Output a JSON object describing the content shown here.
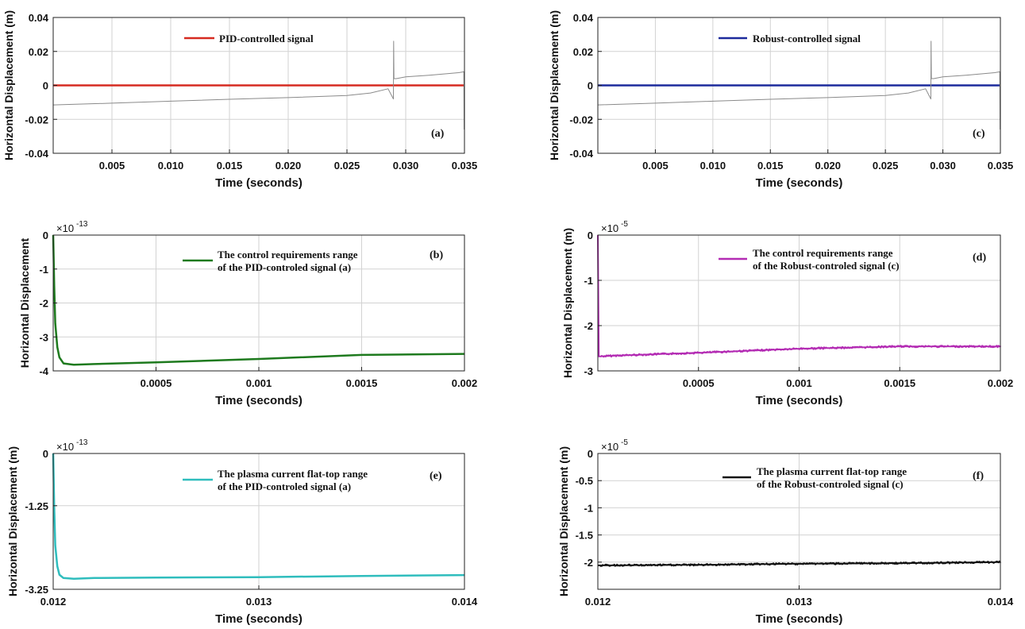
{
  "chart_data": [
    {
      "type": "line",
      "panel_label": "(a)",
      "xlabel": "Time (seconds)",
      "ylabel": "Horizontal Displacement (m)",
      "xlim": [
        0,
        0.035
      ],
      "ylim": [
        -0.04,
        0.04
      ],
      "xticks": [
        0.005,
        0.01,
        0.015,
        0.02,
        0.025,
        0.03,
        0.035
      ],
      "xtick_labels": [
        "0.005",
        "0.010",
        "0.015",
        "0.020",
        "0.025",
        "0.030",
        "0.035"
      ],
      "yticks": [
        -0.04,
        -0.02,
        0,
        0.02,
        0.04
      ],
      "ytick_labels": [
        "-0.04",
        "-0.02",
        "0",
        "0.02",
        "0.04"
      ],
      "exponent": "",
      "grid": true,
      "legend_position": "top-center",
      "series": [
        {
          "name": "PID-controlled signal",
          "color": "#d62a20",
          "x": [
            0,
            0.035
          ],
          "y": [
            0,
            0
          ],
          "width": 2.5
        },
        {
          "color": "#8a8a8a",
          "x": [
            0,
            0.005,
            0.01,
            0.015,
            0.02,
            0.025,
            0.027,
            0.0285,
            0.02895,
            0.02897,
            0.029,
            0.0292,
            0.03,
            0.032,
            0.0345,
            0.03495,
            0.03497
          ],
          "y": [
            -0.0115,
            -0.0105,
            -0.0093,
            -0.0082,
            -0.0072,
            -0.006,
            -0.0045,
            -0.002,
            -0.008,
            0.026,
            0.004,
            0.004,
            0.005,
            0.006,
            0.0075,
            0.008,
            -0.026
          ],
          "width": 1
        }
      ]
    },
    {
      "type": "line",
      "panel_label": "(c)",
      "xlabel": "Time (seconds)",
      "ylabel": "Horizontal Displacement (m)",
      "xlim": [
        0,
        0.035
      ],
      "ylim": [
        -0.04,
        0.04
      ],
      "xticks": [
        0.005,
        0.01,
        0.015,
        0.02,
        0.025,
        0.03,
        0.035
      ],
      "xtick_labels": [
        "0.005",
        "0.010",
        "0.015",
        "0.020",
        "0.025",
        "0.030",
        "0.035"
      ],
      "yticks": [
        -0.04,
        -0.02,
        0,
        0.02,
        0.04
      ],
      "ytick_labels": [
        "-0.04",
        "-0.02",
        "0",
        "0.02",
        "0.04"
      ],
      "exponent": "",
      "grid": true,
      "legend_position": "top-center",
      "series": [
        {
          "name": "Robust-controlled signal",
          "color": "#1c2a9c",
          "x": [
            0,
            0.035
          ],
          "y": [
            0,
            0
          ],
          "width": 2.5
        },
        {
          "color": "#8a8a8a",
          "x": [
            0,
            0.005,
            0.01,
            0.015,
            0.02,
            0.025,
            0.027,
            0.0285,
            0.02895,
            0.02897,
            0.029,
            0.0292,
            0.03,
            0.032,
            0.0345,
            0.03495,
            0.03497
          ],
          "y": [
            -0.0115,
            -0.0105,
            -0.0093,
            -0.0082,
            -0.0072,
            -0.006,
            -0.0045,
            -0.002,
            -0.008,
            0.026,
            0.004,
            0.004,
            0.005,
            0.006,
            0.0075,
            0.008,
            -0.026
          ],
          "width": 1
        }
      ]
    },
    {
      "type": "line",
      "panel_label": "(b)",
      "xlabel": "Time (seconds)",
      "ylabel": "Horizontal Displacement",
      "xlim": [
        0,
        0.002
      ],
      "ylim": [
        -4,
        0
      ],
      "xticks": [
        0.0005,
        0.001,
        0.0015,
        0.002
      ],
      "xtick_labels": [
        "0.0005",
        "0.001",
        "0.0015",
        "0.002"
      ],
      "yticks": [
        -4,
        -3,
        -2,
        -1,
        0
      ],
      "ytick_labels": [
        "-4",
        "-3",
        "-2",
        "-1",
        "0"
      ],
      "exponent": "-13",
      "grid": true,
      "legend_position": "top-center",
      "series": [
        {
          "name": "The control requirements range|of the PID-controled signal (a)",
          "color": "#1e7a1e",
          "x": [
            0,
            5e-06,
            1e-05,
            2e-05,
            3e-05,
            5e-05,
            0.0001,
            0.0002,
            0.0005,
            0.001,
            0.0015,
            0.002
          ],
          "y": [
            0,
            -1.5,
            -2.6,
            -3.3,
            -3.6,
            -3.78,
            -3.82,
            -3.8,
            -3.75,
            -3.65,
            -3.53,
            -3.5
          ],
          "width": 2.5
        }
      ]
    },
    {
      "type": "line",
      "panel_label": "(d)",
      "xlabel": "Time (seconds)",
      "ylabel": "Horizontal Displacement (m)",
      "xlim": [
        0,
        0.002
      ],
      "ylim": [
        -3,
        0
      ],
      "xticks": [
        0.0005,
        0.001,
        0.0015,
        0.002
      ],
      "xtick_labels": [
        "0.0005",
        "0.001",
        "0.0015",
        "0.002"
      ],
      "yticks": [
        -3,
        -2,
        -1,
        0
      ],
      "ytick_labels": [
        "-3",
        "-2",
        "-1",
        "0"
      ],
      "exponent": "-5",
      "grid": true,
      "legend_position": "top-center",
      "series": [
        {
          "name": "The control requirements range|of the Robust-controled signal (c)",
          "color": "#b32bb3",
          "x": [
            0,
            3e-06,
            6e-06,
            0.0001,
            0.0005,
            0.001,
            0.0015,
            0.002
          ],
          "y": [
            0,
            -2.68,
            -2.68,
            -2.66,
            -2.6,
            -2.51,
            -2.46,
            -2.46
          ],
          "width": 2
        }
      ]
    },
    {
      "type": "line",
      "panel_label": "(e)",
      "xlabel": "Time (seconds)",
      "ylabel": "Horizontal Displacement (m)",
      "xlim": [
        0.012,
        0.014
      ],
      "ylim": [
        -3.25,
        0
      ],
      "xticks": [
        0.012,
        0.013,
        0.014
      ],
      "xtick_labels": [
        "0.012",
        "0.013",
        "0.014"
      ],
      "yticks": [
        -3.25,
        -1.25,
        0
      ],
      "ytick_labels": [
        "-3.25",
        "-1.25",
        "0"
      ],
      "exponent": "-13",
      "grid": true,
      "legend_position": "top-center",
      "series": [
        {
          "name": "The plasma current flat-top range|of the PID-controled signal (a)",
          "color": "#2fbdbd",
          "x": [
            0.012,
            0.012005,
            0.01201,
            0.01202,
            0.01203,
            0.01205,
            0.0121,
            0.0122,
            0.0125,
            0.013,
            0.0135,
            0.014
          ],
          "y": [
            0,
            -1.3,
            -2.2,
            -2.7,
            -2.9,
            -2.98,
            -3.0,
            -2.98,
            -2.97,
            -2.96,
            -2.93,
            -2.91
          ],
          "width": 2.5
        }
      ]
    },
    {
      "type": "line",
      "panel_label": "(f)",
      "xlabel": "Time (seconds)",
      "ylabel": "Horizontal Displacement (m)",
      "xlim": [
        0.012,
        0.014
      ],
      "ylim": [
        -2.5,
        0
      ],
      "xticks": [
        0.012,
        0.013,
        0.014
      ],
      "xtick_labels": [
        "0.012",
        "0.013",
        "0.014"
      ],
      "yticks": [
        -2.5,
        -2,
        -1.5,
        -1,
        -0.5,
        0
      ],
      "ytick_labels": [
        "",
        "-2",
        "-1.5",
        "-1",
        "-0.5",
        "0"
      ],
      "exponent": "-5",
      "grid": true,
      "legend_position": "top-center",
      "series": [
        {
          "name": "The plasma current flat-top range|of the Robust-controled signal (c)",
          "color": "#111111",
          "x": [
            0.012,
            0.0125,
            0.013,
            0.0135,
            0.014
          ],
          "y": [
            -2.06,
            -2.05,
            -2.03,
            -2.02,
            -2.0
          ],
          "width": 2
        }
      ]
    }
  ]
}
